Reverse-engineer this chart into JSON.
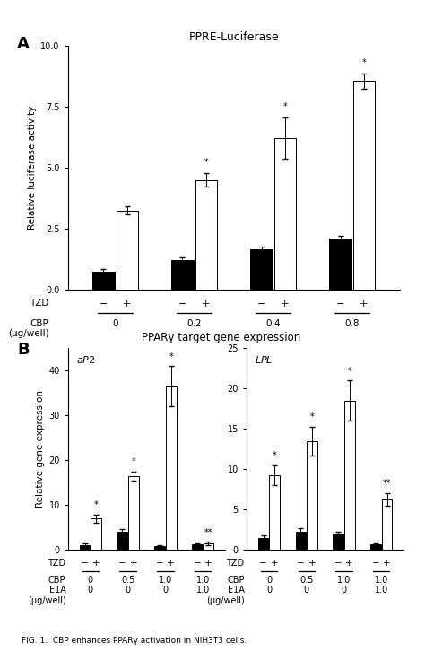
{
  "panel_A": {
    "title": "PPRE-Luciferase",
    "ylabel": "Relative luciferase activity",
    "ylim": [
      0,
      10
    ],
    "yticks": [
      0,
      2.5,
      5.0,
      7.5,
      10.0
    ],
    "ytick_labels": [
      "0",
      "2.5",
      "5.0",
      "7.5",
      "10"
    ],
    "groups": [
      "0",
      "0.2",
      "0.4",
      "0.8"
    ],
    "bar_minus": [
      0.75,
      1.2,
      1.65,
      2.1
    ],
    "bar_plus": [
      3.25,
      4.5,
      6.2,
      8.55
    ],
    "err_minus": [
      0.1,
      0.12,
      0.12,
      0.12
    ],
    "err_plus": [
      0.18,
      0.28,
      0.85,
      0.32
    ],
    "stars_plus": [
      "",
      "*",
      "*",
      "*"
    ]
  },
  "panel_B_aP2": {
    "title": "aP2",
    "ylim": [
      0,
      45
    ],
    "yticks": [
      0,
      10,
      20,
      30,
      40
    ],
    "groups": [
      "0",
      "0.5",
      "1.0",
      "1.0"
    ],
    "bar_minus": [
      1.1,
      4.0,
      0.9,
      1.2
    ],
    "bar_plus": [
      7.0,
      16.5,
      36.5,
      1.5
    ],
    "err_minus": [
      0.35,
      0.6,
      0.15,
      0.2
    ],
    "err_plus": [
      0.9,
      1.0,
      4.5,
      0.35
    ],
    "stars_plus": [
      "*",
      "*",
      "*",
      "**"
    ]
  },
  "panel_B_LPL": {
    "title": "LPL",
    "ylim": [
      0,
      25
    ],
    "yticks": [
      0,
      5,
      10,
      15,
      20,
      25
    ],
    "groups": [
      "0",
      "0.5",
      "1.0",
      "1.0"
    ],
    "bar_minus": [
      1.5,
      2.3,
      2.0,
      0.7
    ],
    "bar_plus": [
      9.3,
      13.5,
      18.5,
      6.3
    ],
    "err_minus": [
      0.3,
      0.4,
      0.3,
      0.1
    ],
    "err_plus": [
      1.2,
      1.8,
      2.5,
      0.8
    ],
    "stars_plus": [
      "*",
      "*",
      "*",
      "**"
    ]
  },
  "panel_B_title": "PPARγ target gene expression",
  "panel_B_ylabel": "Relative gene expression",
  "panel_B_cbp": [
    "0",
    "0.5",
    "1.0",
    "1.0"
  ],
  "panel_B_e1a": [
    "0",
    "0",
    "0",
    "1.0"
  ],
  "caption": "FIG. 1.  CBP enhances PPARγ activation in NIH3T3 cells."
}
